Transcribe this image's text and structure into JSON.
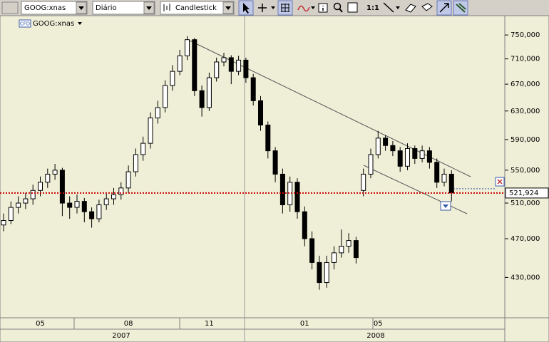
{
  "toolbar": {
    "symbol": "GOOG:xnas",
    "period": "Diário",
    "chart_style": "Candlestick",
    "zoom": "1:1"
  },
  "chart_data": {
    "type": "candlestick",
    "title": "GOOG:xnas",
    "badge": "CFD",
    "categories": [
      null,
      null,
      null,
      null,
      null,
      "05",
      null,
      null,
      null,
      null,
      null,
      null,
      null,
      null,
      null,
      null,
      null,
      "08",
      null,
      null,
      null,
      null,
      null,
      null,
      null,
      null,
      null,
      null,
      "11",
      null,
      null,
      null,
      null,
      null,
      null,
      null,
      null,
      null,
      null,
      null,
      null,
      "01",
      null,
      null,
      null,
      null,
      null,
      null,
      null,
      null,
      null,
      "05",
      null,
      null,
      null,
      null,
      null,
      null,
      null,
      null,
      null,
      null
    ],
    "year_labels": [
      "2007",
      "2008"
    ],
    "open": [
      485000,
      490000,
      505000,
      510000,
      515000,
      525000,
      535000,
      545000,
      550000,
      510000,
      505000,
      512000,
      500000,
      492000,
      508000,
      515000,
      520000,
      528000,
      548000,
      570000,
      585000,
      620000,
      635000,
      668000,
      690000,
      715000,
      742000,
      660000,
      635000,
      680000,
      705000,
      712000,
      690000,
      708000,
      680000,
      645000,
      610000,
      575000,
      545000,
      508000,
      535000,
      500000,
      470000,
      445000,
      425000,
      445000,
      455000,
      462000,
      468000,
      525000,
      545000,
      570000,
      592000,
      582000,
      575000,
      555000,
      578000,
      565000,
      575000,
      560000,
      535000,
      545000
    ],
    "high": [
      498000,
      512000,
      518000,
      522000,
      532000,
      542000,
      552000,
      558000,
      553000,
      518000,
      520000,
      516000,
      505000,
      514000,
      522000,
      528000,
      535000,
      556000,
      578000,
      594000,
      628000,
      645000,
      676000,
      700000,
      725000,
      748000,
      745000,
      668000,
      688000,
      712000,
      720000,
      716000,
      715000,
      712000,
      686000,
      652000,
      615000,
      580000,
      552000,
      542000,
      540000,
      506000,
      478000,
      452000,
      452000,
      462000,
      480000,
      476000,
      472000,
      552000,
      578000,
      602000,
      596000,
      588000,
      580000,
      585000,
      582000,
      582000,
      580000,
      565000,
      552000,
      550000
    ],
    "low": [
      478000,
      486000,
      498000,
      503000,
      508000,
      518000,
      528000,
      538000,
      495000,
      492000,
      498000,
      488000,
      482000,
      488000,
      502000,
      508000,
      514000,
      522000,
      542000,
      562000,
      578000,
      612000,
      628000,
      660000,
      684000,
      708000,
      652000,
      622000,
      630000,
      674000,
      698000,
      670000,
      684000,
      672000,
      638000,
      602000,
      565000,
      535000,
      498000,
      500000,
      492000,
      462000,
      438000,
      418000,
      420000,
      438000,
      450000,
      455000,
      444000,
      518000,
      540000,
      565000,
      575000,
      568000,
      548000,
      550000,
      558000,
      560000,
      552000,
      528000,
      530000,
      512000
    ],
    "close": [
      490000,
      505000,
      510000,
      515000,
      525000,
      535000,
      545000,
      550000,
      510000,
      505000,
      512000,
      500000,
      492000,
      508000,
      515000,
      520000,
      528000,
      548000,
      570000,
      585000,
      620000,
      635000,
      668000,
      690000,
      715000,
      742000,
      660000,
      635000,
      680000,
      705000,
      712000,
      690000,
      708000,
      680000,
      645000,
      610000,
      575000,
      545000,
      508000,
      535000,
      500000,
      470000,
      445000,
      425000,
      445000,
      455000,
      462000,
      468000,
      450000,
      545000,
      570000,
      592000,
      582000,
      575000,
      555000,
      578000,
      565000,
      575000,
      560000,
      535000,
      545000,
      522000
    ],
    "ylim": [
      392000,
      784000
    ],
    "log_scale": true,
    "yticks": [
      {
        "value": 430000,
        "label": "430,000"
      },
      {
        "value": 470000,
        "label": "470,000"
      },
      {
        "value": 510000,
        "label": "510,000"
      },
      {
        "value": 550000,
        "label": "550,000"
      },
      {
        "value": 590000,
        "label": "590,000"
      },
      {
        "value": 630000,
        "label": "630,000"
      },
      {
        "value": 670000,
        "label": "670,000"
      },
      {
        "value": 710000,
        "label": "710,000"
      },
      {
        "value": 750000,
        "label": "750,000"
      }
    ],
    "price_line": {
      "value": 521924,
      "label": "521,924"
    },
    "up_color": "#ffffff",
    "down_color": "#000000",
    "background": "#efefd8",
    "price_line_color": "#cc0000"
  }
}
